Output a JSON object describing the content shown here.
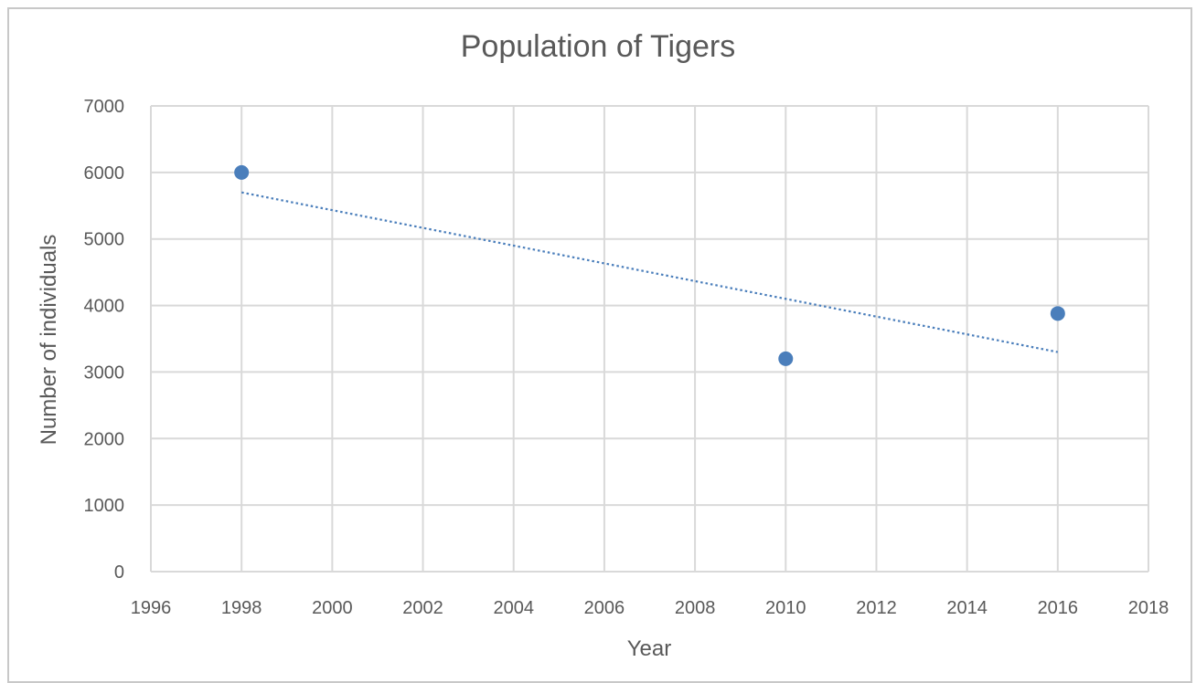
{
  "chart_data": {
    "type": "scatter",
    "title": "Population of Tigers",
    "xlabel": "Year",
    "ylabel": "Number of individuals",
    "xlim": [
      1996,
      2018
    ],
    "ylim": [
      0,
      7000
    ],
    "x_ticks": [
      1996,
      1998,
      2000,
      2002,
      2004,
      2006,
      2008,
      2010,
      2012,
      2014,
      2016,
      2018
    ],
    "y_ticks": [
      0,
      1000,
      2000,
      3000,
      4000,
      5000,
      6000,
      7000
    ],
    "grid": true,
    "legend": "none",
    "series": [
      {
        "color": "#4a7ebb",
        "points": [
          {
            "x": 1998,
            "y": 6000
          },
          {
            "x": 2010,
            "y": 3200
          },
          {
            "x": 2016,
            "y": 3880
          }
        ]
      }
    ],
    "trendline": {
      "type": "linear",
      "style": "dotted",
      "color": "#4a7ebb",
      "from": {
        "x": 1998,
        "y": 5700
      },
      "to": {
        "x": 2016,
        "y": 3300
      }
    }
  },
  "colors": {
    "gridline": "#d9d9d9",
    "text": "#595959",
    "marker": "#4a7ebb",
    "frame_border": "#c8c8c8"
  }
}
